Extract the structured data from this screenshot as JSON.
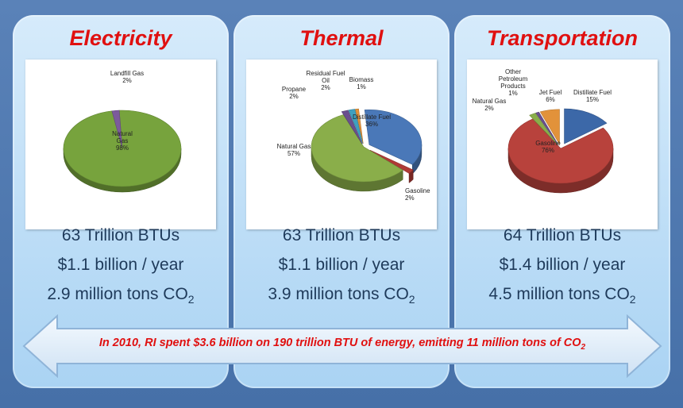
{
  "banner": {
    "text_main": "In 2010, RI spent $3.6 billion on 190 trillion BTU of energy, emitting 11 million tons of CO",
    "text_sub": "2"
  },
  "panels": [
    {
      "title": "Electricity",
      "stats": {
        "energy": "63 Trillion BTUs",
        "cost": "$1.1 billion / year",
        "co2_main": "2.9 million tons CO",
        "co2_sub": "2"
      }
    },
    {
      "title": "Thermal",
      "stats": {
        "energy": "63 Trillion BTUs",
        "cost": "$1.1 billion / year",
        "co2_main": "3.9 million tons CO",
        "co2_sub": "2"
      }
    },
    {
      "title": "Transportation",
      "stats": {
        "energy": "64 Trillion BTUs",
        "cost": "$1.4 billion / year",
        "co2_main": "4.5 million tons CO",
        "co2_sub": "2"
      }
    }
  ],
  "chart_data": [
    {
      "type": "pie",
      "title": "",
      "slices": [
        {
          "label": "Natural Gas",
          "display_label": [
            "Natural",
            "Gas",
            "98%"
          ],
          "value": 98,
          "color": "#77a33d"
        },
        {
          "label": "Landfill Gas",
          "display_label": [
            "Landfill Gas",
            "2%"
          ],
          "value": 2,
          "color": "#7c5a9c"
        }
      ]
    },
    {
      "type": "pie",
      "title": "",
      "slices": [
        {
          "label": "Distillate Fuel",
          "display_label": [
            "Distillate Fuel",
            "36%"
          ],
          "value": 36,
          "color": "#4a78b8"
        },
        {
          "label": "Gasoline",
          "display_label": [
            "Gasoline",
            "2%"
          ],
          "value": 2,
          "color": "#b03a35"
        },
        {
          "label": "Natural Gas",
          "display_label": [
            "Natural Gas",
            "57%"
          ],
          "value": 57,
          "color": "#8aae4a"
        },
        {
          "label": "Propane",
          "display_label": [
            "Propane",
            "2%"
          ],
          "value": 2,
          "color": "#6a4f8e"
        },
        {
          "label": "Residual Fuel Oil",
          "display_label": [
            "Residual Fuel",
            "Oil",
            "2%"
          ],
          "value": 2,
          "color": "#3fa0c0"
        },
        {
          "label": "Biomass",
          "display_label": [
            "Biomass",
            "1%"
          ],
          "value": 1,
          "color": "#e2923a"
        }
      ]
    },
    {
      "type": "pie",
      "title": "",
      "slices": [
        {
          "label": "Distillate Fuel",
          "display_label": [
            "Distillate Fuel",
            "15%"
          ],
          "value": 15,
          "color": "#3c68a8"
        },
        {
          "label": "Gasoline",
          "display_label": [
            "Gasoline",
            "76%"
          ],
          "value": 76,
          "color": "#b8423c"
        },
        {
          "label": "Natural Gas",
          "display_label": [
            "Natural Gas",
            "2%"
          ],
          "value": 2,
          "color": "#8aae4a"
        },
        {
          "label": "Other Petroleum Products",
          "display_label": [
            "Other",
            "Petroleum",
            "Products",
            "1%"
          ],
          "value": 1,
          "color": "#6a4f8e"
        },
        {
          "label": "Jet Fuel",
          "display_label": [
            "Jet Fuel",
            "6%"
          ],
          "value": 6,
          "color": "#e2923a"
        }
      ]
    }
  ]
}
